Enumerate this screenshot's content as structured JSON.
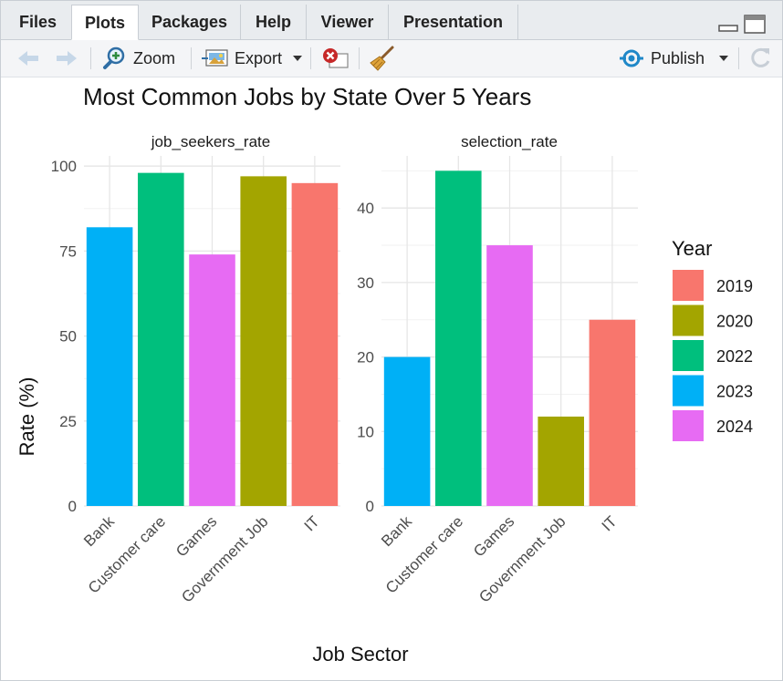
{
  "tabs": [
    {
      "label": "Files",
      "active": false
    },
    {
      "label": "Plots",
      "active": true
    },
    {
      "label": "Packages",
      "active": false
    },
    {
      "label": "Help",
      "active": false
    },
    {
      "label": "Viewer",
      "active": false
    },
    {
      "label": "Presentation",
      "active": false
    }
  ],
  "toolbar": {
    "zoom_label": "Zoom",
    "export_label": "Export",
    "publish_label": "Publish"
  },
  "colors": {
    "2019": "#F8766D",
    "2020": "#A3A500",
    "2022": "#00BF7D",
    "2023": "#00B0F6",
    "2024": "#E76BF3",
    "publish_accent": "#1f88c8"
  },
  "chart_data": {
    "type": "bar",
    "title": "Most Common Jobs by State Over 5 Years",
    "xlabel": "Job Sector",
    "ylabel": "Rate (%)",
    "categories": [
      "Bank",
      "Customer care",
      "Games",
      "Government Job",
      "IT"
    ],
    "legend": {
      "title": "Year",
      "placement": "right",
      "entries": [
        "2019",
        "2020",
        "2022",
        "2023",
        "2024"
      ]
    },
    "bar_years": [
      "2023",
      "2022",
      "2024",
      "2020",
      "2019"
    ],
    "panels": [
      {
        "name": "job_seekers_rate",
        "values": [
          82,
          98,
          74,
          97,
          95
        ],
        "ylim": [
          0,
          103
        ],
        "ticks": [
          0,
          25,
          50,
          75,
          100
        ]
      },
      {
        "name": "selection_rate",
        "values": [
          20,
          45,
          35,
          12,
          25
        ],
        "ylim": [
          0,
          47
        ],
        "ticks": [
          0,
          10,
          20,
          30,
          40
        ]
      }
    ],
    "grid": true
  }
}
